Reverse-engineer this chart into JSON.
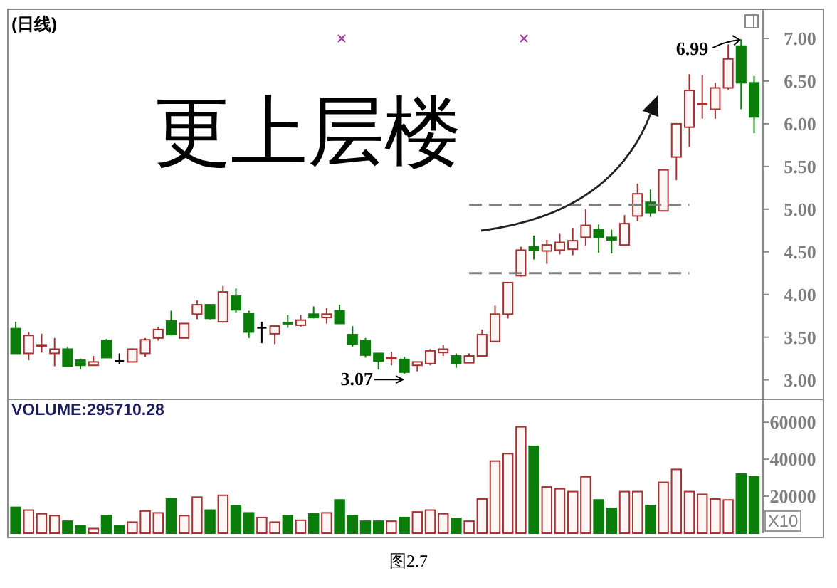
{
  "chart_data": [
    {
      "type": "candlestick",
      "title": "(日线)",
      "categories": [
        null,
        null,
        null,
        null,
        null,
        null,
        null,
        null,
        null,
        null,
        null,
        null,
        null,
        null,
        null,
        null,
        null,
        null,
        null,
        null,
        null,
        null,
        null,
        null,
        null,
        null,
        null,
        null,
        null,
        null,
        null,
        null,
        null,
        null,
        null,
        null,
        null,
        null,
        null,
        null,
        null,
        null,
        null,
        null,
        null,
        null,
        null,
        null,
        null,
        null,
        null,
        null,
        null,
        null,
        null,
        null,
        null,
        null
      ],
      "ohlc": [
        [
          3.6,
          3.68,
          3.31,
          3.31
        ],
        [
          3.31,
          3.56,
          3.23,
          3.52
        ],
        [
          3.4,
          3.54,
          3.32,
          3.41
        ],
        [
          3.31,
          3.49,
          3.16,
          3.36
        ],
        [
          3.36,
          3.39,
          3.16,
          3.16
        ],
        [
          3.23,
          3.25,
          3.12,
          3.17
        ],
        [
          3.17,
          3.28,
          3.17,
          3.21
        ],
        [
          3.46,
          3.48,
          3.26,
          3.26
        ],
        [
          3.22,
          3.31,
          3.18,
          3.22
        ],
        [
          3.21,
          3.36,
          3.21,
          3.36
        ],
        [
          3.31,
          3.49,
          3.27,
          3.47
        ],
        [
          3.49,
          3.62,
          3.46,
          3.59
        ],
        [
          3.69,
          3.81,
          3.52,
          3.53
        ],
        [
          3.49,
          3.66,
          3.49,
          3.66
        ],
        [
          3.77,
          3.93,
          3.71,
          3.88
        ],
        [
          3.88,
          3.88,
          3.71,
          3.72
        ],
        [
          3.68,
          4.1,
          3.67,
          4.03
        ],
        [
          3.98,
          4.07,
          3.79,
          3.82
        ],
        [
          3.78,
          3.81,
          3.49,
          3.56
        ],
        [
          3.61,
          3.68,
          3.43,
          3.61
        ],
        [
          3.54,
          3.63,
          3.42,
          3.63
        ],
        [
          3.67,
          3.76,
          3.61,
          3.66
        ],
        [
          3.64,
          3.76,
          3.62,
          3.7
        ],
        [
          3.77,
          3.86,
          3.72,
          3.73
        ],
        [
          3.73,
          3.84,
          3.66,
          3.77
        ],
        [
          3.81,
          3.88,
          3.66,
          3.66
        ],
        [
          3.53,
          3.63,
          3.39,
          3.42
        ],
        [
          3.46,
          3.49,
          3.26,
          3.29
        ],
        [
          3.31,
          3.31,
          3.12,
          3.22
        ],
        [
          3.25,
          3.33,
          3.17,
          3.26
        ],
        [
          3.24,
          3.27,
          3.07,
          3.09
        ],
        [
          3.17,
          3.21,
          3.1,
          3.21
        ],
        [
          3.19,
          3.36,
          3.17,
          3.34
        ],
        [
          3.32,
          3.41,
          3.28,
          3.36
        ],
        [
          3.28,
          3.31,
          3.14,
          3.19
        ],
        [
          3.2,
          3.31,
          3.2,
          3.28
        ],
        [
          3.28,
          3.59,
          3.28,
          3.53
        ],
        [
          3.45,
          3.87,
          3.45,
          3.77
        ],
        [
          3.77,
          4.14,
          3.72,
          4.14
        ],
        [
          4.22,
          4.56,
          4.21,
          4.52
        ],
        [
          4.56,
          4.69,
          4.41,
          4.52
        ],
        [
          4.51,
          4.64,
          4.36,
          4.58
        ],
        [
          4.52,
          4.71,
          4.47,
          4.61
        ],
        [
          4.53,
          4.78,
          4.46,
          4.63
        ],
        [
          4.67,
          5.0,
          4.57,
          4.81
        ],
        [
          4.76,
          4.82,
          4.49,
          4.67
        ],
        [
          4.67,
          4.76,
          4.48,
          4.64
        ],
        [
          4.58,
          4.93,
          4.58,
          4.83
        ],
        [
          4.92,
          5.3,
          4.86,
          5.18
        ],
        [
          5.08,
          5.23,
          4.91,
          4.96
        ],
        [
          4.98,
          5.46,
          4.98,
          5.46
        ],
        [
          5.61,
          6.0,
          5.34,
          6.0
        ],
        [
          5.96,
          6.58,
          5.73,
          6.39
        ],
        [
          6.23,
          6.57,
          6.06,
          6.24
        ],
        [
          6.17,
          6.48,
          6.06,
          6.42
        ],
        [
          6.42,
          6.93,
          6.4,
          6.76
        ],
        [
          6.91,
          6.99,
          6.17,
          6.48
        ],
        [
          6.48,
          6.56,
          5.89,
          6.08
        ]
      ],
      "colors": [
        "#0b7d0b",
        "#a83232",
        "#a83232",
        "#a83232",
        "#0b7d0b",
        "#0b7d0b",
        "#a83232",
        "#0b7d0b",
        "#000000",
        "#a83232",
        "#a83232",
        "#a83232",
        "#0b7d0b",
        "#a83232",
        "#a83232",
        "#0b7d0b",
        "#a83232",
        "#0b7d0b",
        "#0b7d0b",
        "#000000",
        "#a83232",
        "#0b7d0b",
        "#a83232",
        "#0b7d0b",
        "#a83232",
        "#0b7d0b",
        "#0b7d0b",
        "#0b7d0b",
        "#0b7d0b",
        "#a83232",
        "#0b7d0b",
        "#a83232",
        "#a83232",
        "#a83232",
        "#0b7d0b",
        "#a83232",
        "#a83232",
        "#a83232",
        "#a83232",
        "#a83232",
        "#0b7d0b",
        "#a83232",
        "#a83232",
        "#a83232",
        "#a83232",
        "#0b7d0b",
        "#0b7d0b",
        "#a83232",
        "#a83232",
        "#0b7d0b",
        "#a83232",
        "#a83232",
        "#a83232",
        "#a83232",
        "#a83232",
        "#a83232",
        "#0b7d0b",
        "#0b7d0b"
      ],
      "series": [
        {
          "type": "line",
          "color": "#808080",
          "values": [
            null,
            null,
            null,
            null,
            null,
            null,
            null,
            null,
            null,
            null,
            null,
            null,
            null,
            null,
            null,
            null,
            null,
            null,
            null,
            null,
            null,
            null,
            null,
            null,
            null,
            null,
            null,
            null,
            null,
            null,
            null,
            null,
            null,
            null,
            null,
            5.05,
            5.05,
            5.05,
            5.05,
            5.05,
            5.05,
            5.05,
            5.05,
            5.05,
            5.05,
            5.05,
            5.05,
            5.05,
            5.05,
            5.05,
            5.05,
            5.05,
            5.05,
            null,
            null,
            null,
            null,
            null
          ]
        },
        {
          "type": "line",
          "color": "#808080",
          "values": [
            null,
            null,
            null,
            null,
            null,
            null,
            null,
            null,
            null,
            null,
            null,
            null,
            null,
            null,
            null,
            null,
            null,
            null,
            null,
            null,
            null,
            null,
            null,
            null,
            null,
            null,
            null,
            null,
            null,
            null,
            null,
            null,
            null,
            null,
            null,
            4.25,
            4.25,
            4.25,
            4.25,
            4.25,
            4.25,
            4.25,
            4.25,
            4.25,
            4.25,
            4.25,
            4.25,
            4.25,
            4.25,
            4.25,
            4.25,
            4.25,
            4.25,
            null,
            null,
            null,
            null,
            null
          ]
        }
      ],
      "line_style": "dashed",
      "ylim": [
        2.78,
        7.35
      ],
      "yticks": [
        {
          "value": 3,
          "label": "3.00"
        },
        {
          "value": 3.5,
          "label": "3.50"
        },
        {
          "value": 4,
          "label": "4.00"
        },
        {
          "value": 4.5,
          "label": "4.50"
        },
        {
          "value": 5,
          "label": "5.00"
        },
        {
          "value": 5.5,
          "label": "5.50"
        },
        {
          "value": 6,
          "label": "6.00"
        },
        {
          "value": 6.5,
          "label": "6.50"
        },
        {
          "value": 7,
          "label": "7.00"
        }
      ],
      "tick_labels": "y",
      "annotations": [
        "更上层楼",
        "3.07",
        "6.99"
      ]
    },
    {
      "type": "bar",
      "title": "VOLUME:295710.28",
      "ylabel": "X10",
      "categories": [
        null,
        null,
        null,
        null,
        null,
        null,
        null,
        null,
        null,
        null,
        null,
        null,
        null,
        null,
        null,
        null,
        null,
        null,
        null,
        null,
        null,
        null,
        null,
        null,
        null,
        null,
        null,
        null,
        null,
        null,
        null,
        null,
        null,
        null,
        null,
        null,
        null,
        null,
        null,
        null,
        null,
        null,
        null,
        null,
        null,
        null,
        null,
        null,
        null,
        null,
        null,
        null,
        null,
        null,
        null,
        null,
        null,
        null
      ],
      "values": [
        14000,
        12500,
        10500,
        9500,
        6500,
        4000,
        2500,
        9500,
        4000,
        6000,
        12000,
        11000,
        18500,
        9500,
        19500,
        12500,
        20500,
        15000,
        11000,
        8500,
        6000,
        9500,
        7000,
        10500,
        11000,
        18000,
        9500,
        6500,
        6500,
        6500,
        8500,
        11500,
        12500,
        10500,
        8000,
        6500,
        18500,
        39000,
        43000,
        57500,
        47000,
        25000,
        24000,
        22500,
        30500,
        18000,
        13500,
        22500,
        22500,
        15000,
        27500,
        34500,
        22500,
        21000,
        18500,
        18000,
        32000,
        30500
      ],
      "colors": [
        "#0b7d0b",
        "#a83232",
        "#a83232",
        "#a83232",
        "#0b7d0b",
        "#0b7d0b",
        "#a83232",
        "#0b7d0b",
        "#0b7d0b",
        "#a83232",
        "#a83232",
        "#a83232",
        "#0b7d0b",
        "#a83232",
        "#a83232",
        "#0b7d0b",
        "#a83232",
        "#0b7d0b",
        "#0b7d0b",
        "#a83232",
        "#a83232",
        "#0b7d0b",
        "#a83232",
        "#0b7d0b",
        "#a83232",
        "#0b7d0b",
        "#0b7d0b",
        "#0b7d0b",
        "#0b7d0b",
        "#a83232",
        "#0b7d0b",
        "#a83232",
        "#a83232",
        "#a83232",
        "#0b7d0b",
        "#a83232",
        "#a83232",
        "#a83232",
        "#a83232",
        "#a83232",
        "#0b7d0b",
        "#a83232",
        "#a83232",
        "#a83232",
        "#a83232",
        "#0b7d0b",
        "#0b7d0b",
        "#a83232",
        "#a83232",
        "#0b7d0b",
        "#a83232",
        "#a83232",
        "#a83232",
        "#a83232",
        "#a83232",
        "#a83232",
        "#0b7d0b",
        "#0b7d0b"
      ],
      "ylim": [
        0,
        72000
      ],
      "yticks": [
        20000,
        40000,
        60000
      ],
      "tick_labels": "y",
      "annotations": [
        "图2.7"
      ]
    }
  ]
}
